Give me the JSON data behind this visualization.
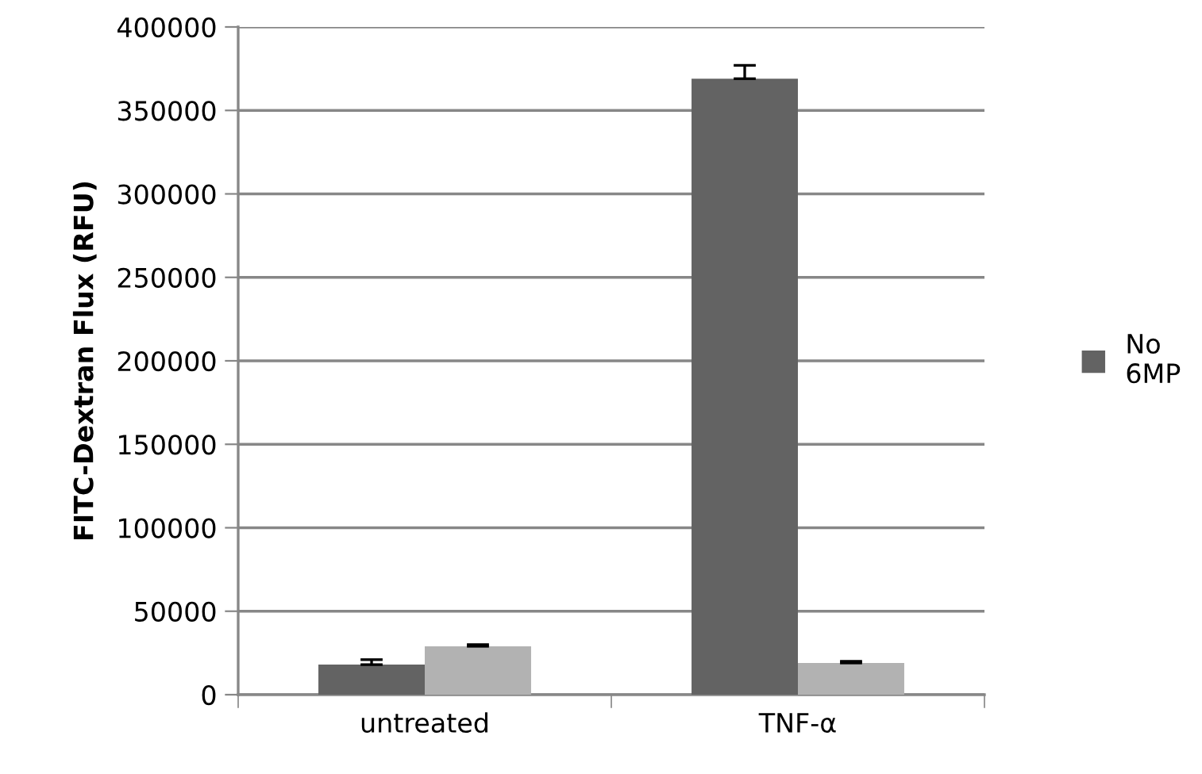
{
  "chart_data": {
    "type": "bar",
    "ylabel": "FITC-Dextran Flux (RFU)",
    "categories": [
      "untreated",
      "TNF-α"
    ],
    "series": [
      {
        "name": "No 6MP",
        "color": "#636363",
        "values": [
          18000,
          369000
        ],
        "errors": [
          3000,
          8000
        ]
      },
      {
        "color": "#b2b2b2",
        "values": [
          29000,
          19000
        ],
        "errors": [
          1000,
          1000
        ]
      }
    ],
    "ylim": [
      0,
      400000
    ],
    "yticks": [
      0,
      50000,
      100000,
      150000,
      200000,
      250000,
      300000,
      350000,
      400000
    ],
    "grid": "y",
    "legend": "right"
  }
}
